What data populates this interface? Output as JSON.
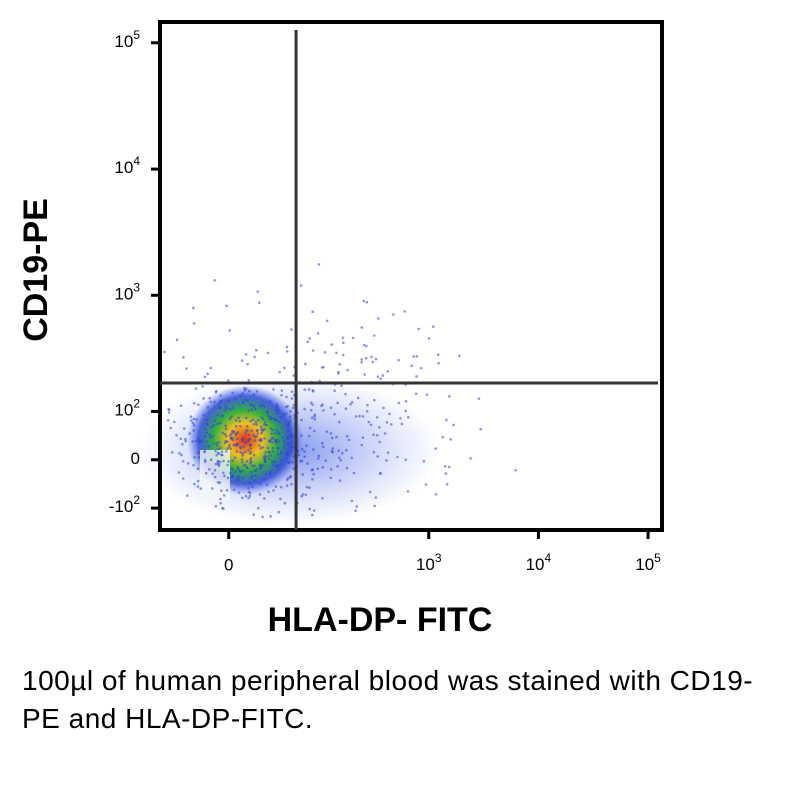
{
  "chart_data": {
    "type": "scatter",
    "scale": "biexponential",
    "x_label": "HLA-DP- FITC",
    "y_label": "CD19-PE",
    "xlim": [
      -60,
      134000
    ],
    "ylim": [
      -166,
      146000
    ],
    "xticks": [
      0,
      {
        "value": 1000,
        "label": "10",
        "power": "3"
      },
      {
        "value": 10000,
        "label": "10",
        "power": "4"
      },
      {
        "value": 100000,
        "label": "10",
        "power": "5"
      }
    ],
    "yticks": [
      {
        "value": -100,
        "label": "-10",
        "power": "2"
      },
      0,
      {
        "value": 100,
        "label": "10",
        "power": "2"
      },
      {
        "value": 1000,
        "label": "10",
        "power": "3"
      },
      {
        "value": 10000,
        "label": "10",
        "power": "4"
      },
      {
        "value": 100000,
        "label": "10",
        "power": "5"
      }
    ],
    "quadrant_gate": {
      "x": 58,
      "y": 190
    },
    "caption": "100µl of human peripheral blood was stained with CD19-PE and HLA-DP-FITC."
  }
}
